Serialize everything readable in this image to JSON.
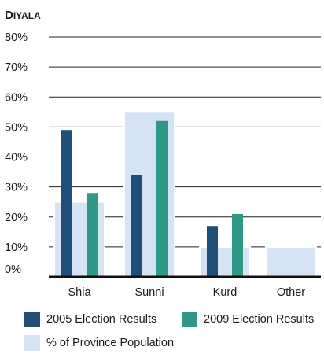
{
  "chart_data": {
    "type": "bar",
    "title": "Diyala",
    "categories": [
      "Shia",
      "Sunni",
      "Kurd",
      "Other"
    ],
    "series": [
      {
        "name": "2005 Election Results",
        "color": "#1f4e7a",
        "values": [
          49,
          34,
          17,
          0
        ]
      },
      {
        "name": "2009 Election Results",
        "color": "#2e9a86",
        "values": [
          28,
          52,
          21,
          0
        ]
      }
    ],
    "background_series": {
      "name": "% of Province Population",
      "color": "#d6e3f3",
      "values": [
        25,
        55,
        10,
        10
      ]
    },
    "y_ticks": [
      "0%",
      "10%",
      "20%",
      "30%",
      "40%",
      "50%",
      "60%",
      "70%",
      "80%"
    ],
    "ylim": [
      0,
      80
    ],
    "grid": true,
    "legend_position": "bottom"
  }
}
